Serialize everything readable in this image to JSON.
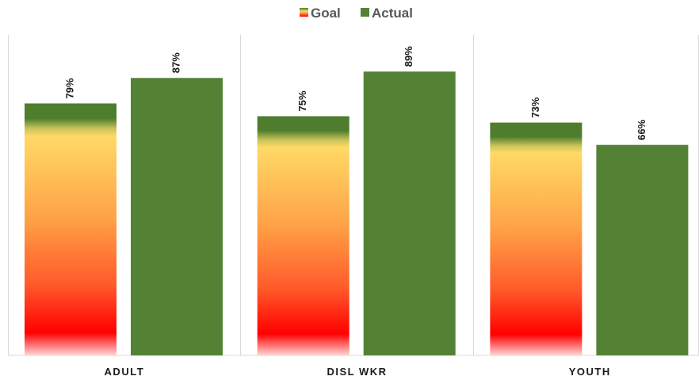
{
  "chart_data": {
    "type": "bar",
    "categories": [
      "ADULT",
      "DISL WKR",
      "YOUTH"
    ],
    "series": [
      {
        "name": "Goal",
        "values": [
          79,
          75,
          73
        ],
        "labels": [
          "79%",
          "75%",
          "73%"
        ],
        "style": "red-yellow-green-gradient"
      },
      {
        "name": "Actual",
        "values": [
          87,
          89,
          66
        ],
        "labels": [
          "87%",
          "89%",
          "66%"
        ],
        "color": "#548235"
      }
    ],
    "ylim": [
      0,
      100
    ],
    "unit": "%",
    "legend": "top-center",
    "grid": false,
    "colors": {
      "goal_top": "#4e7d2e",
      "goal_mid": "#ffd966",
      "goal_low": "#ff7a2e",
      "goal_bottom": "#ff0000",
      "actual": "#548235",
      "divider": "#d9d9d9"
    }
  }
}
